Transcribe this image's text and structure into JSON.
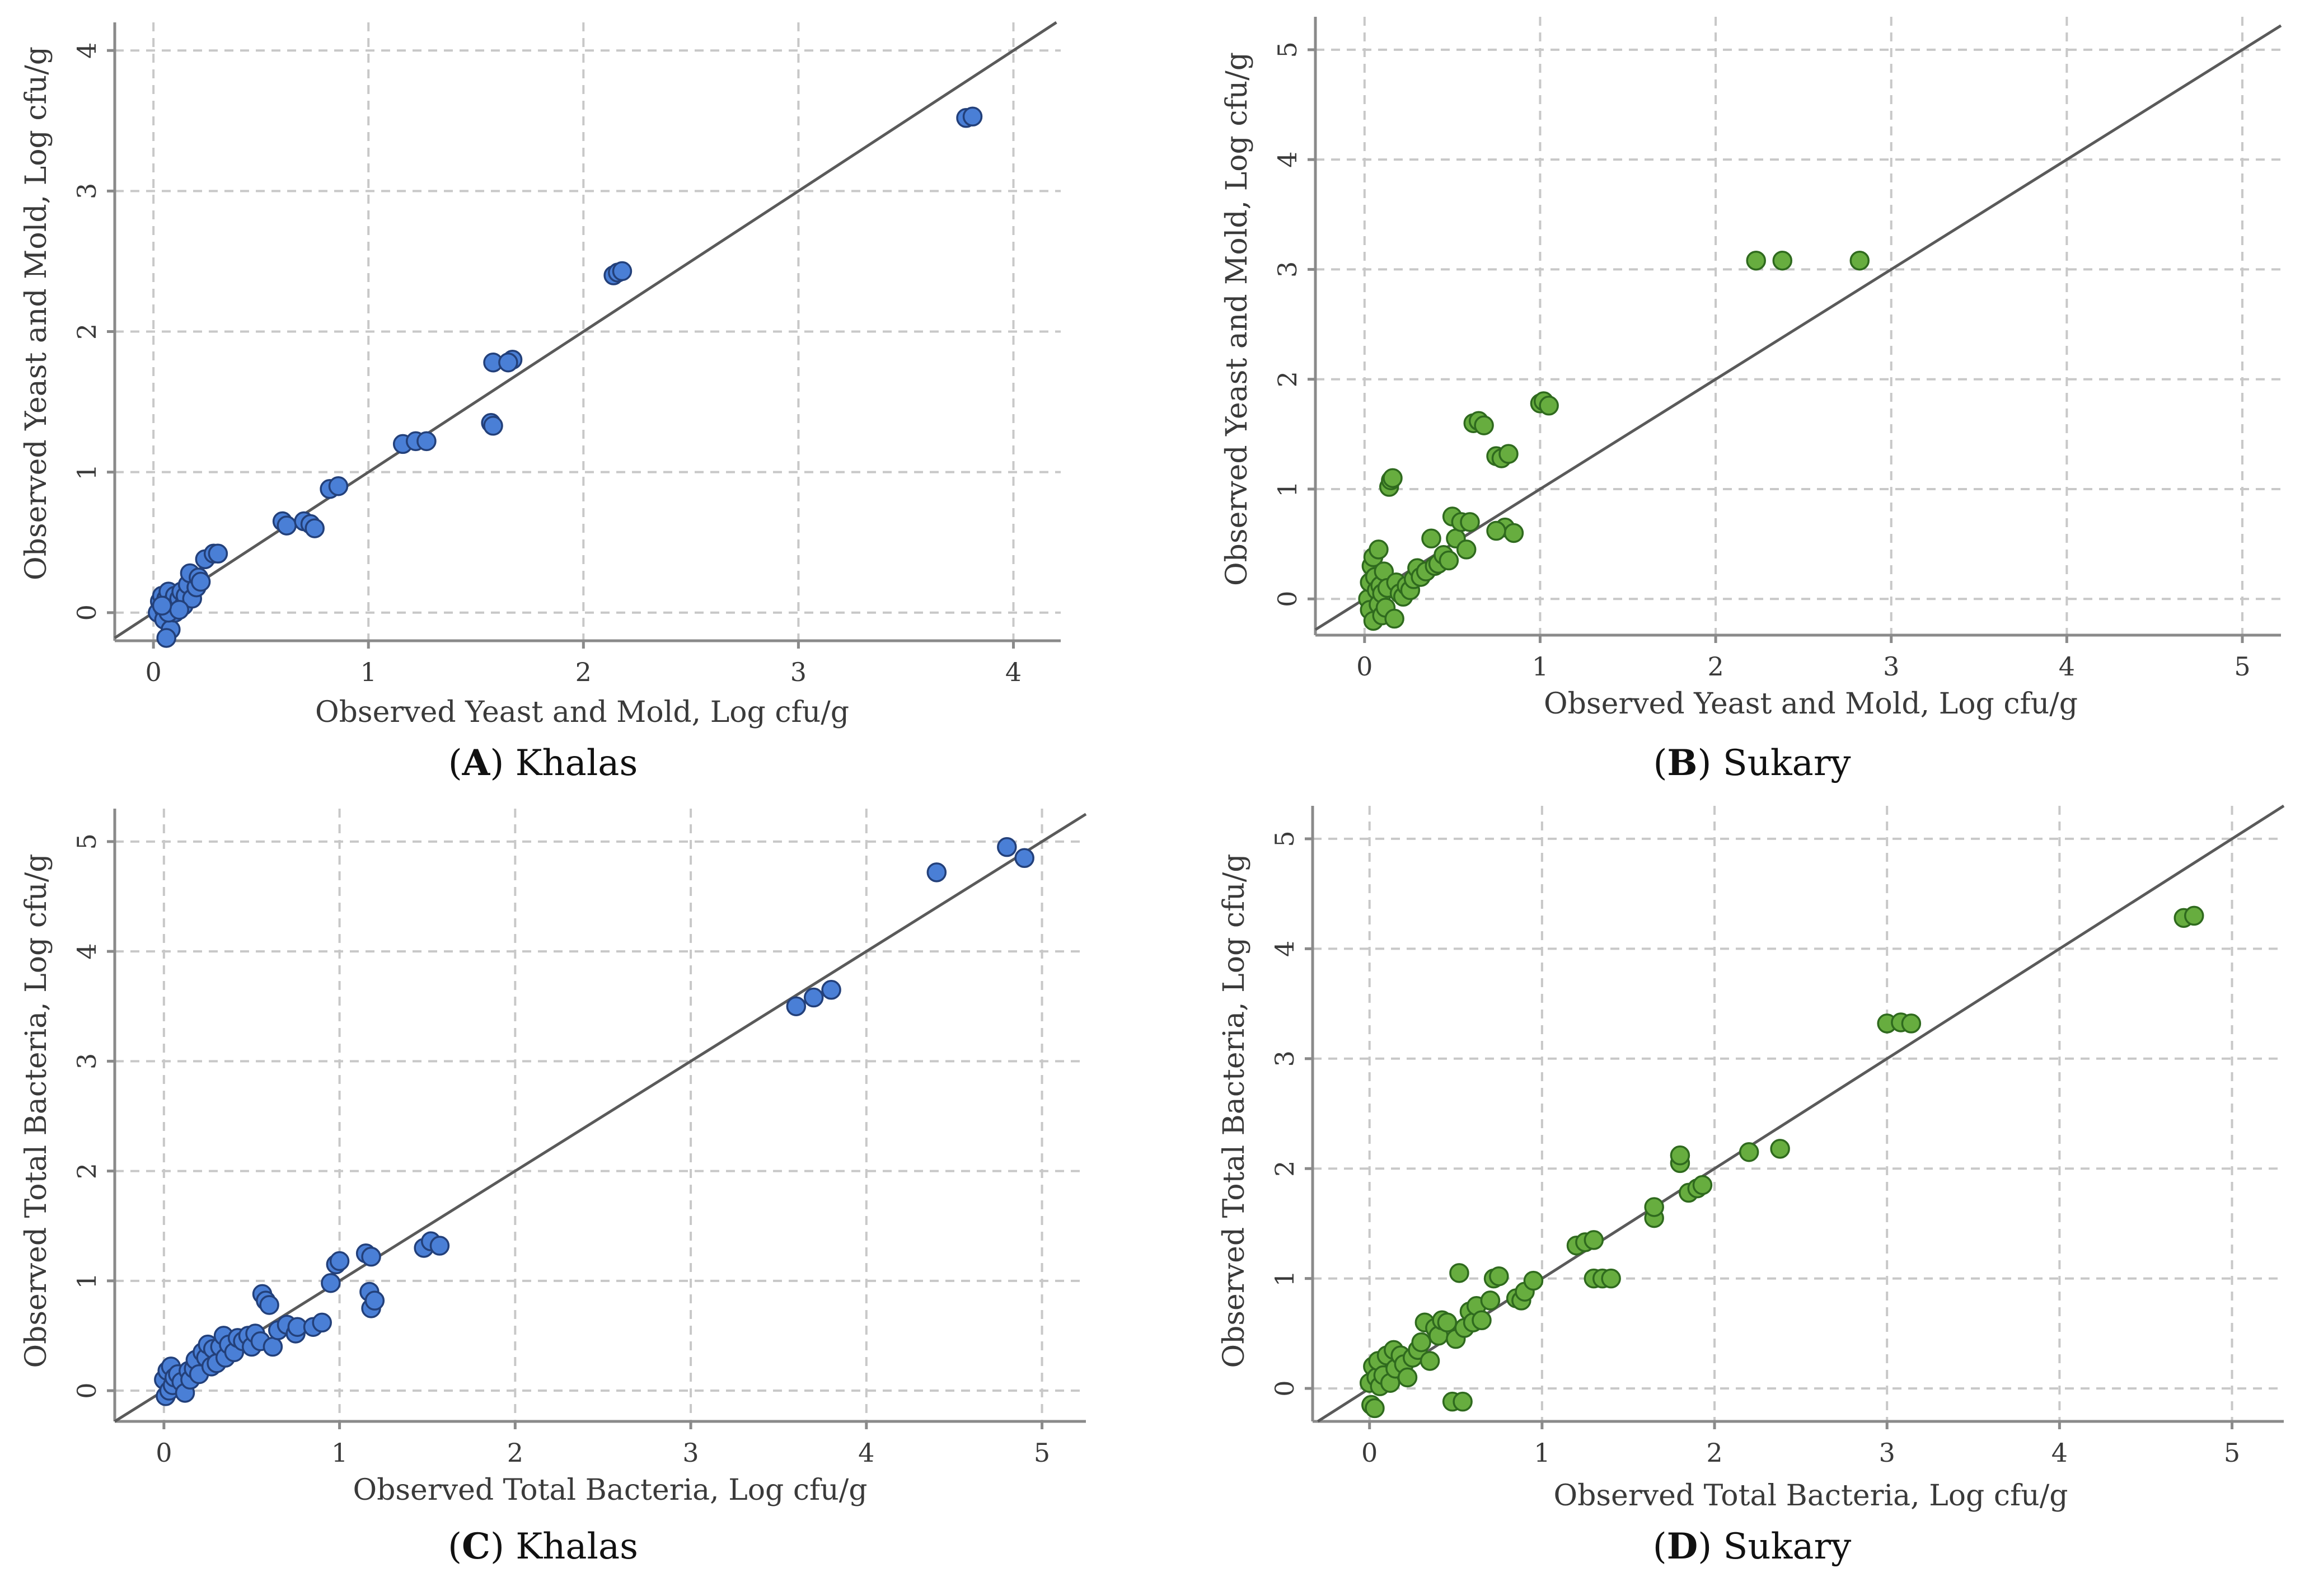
{
  "chart_data": [
    {
      "type": "scatter",
      "panel": "A",
      "caption_letter": "A",
      "caption_text": "Khalas",
      "color": "#4a7fd6",
      "stroke": "#23407a",
      "xlabel": "Observed Yeast and Mold, Log cfu/g",
      "ylabel": "Observed Yeast and Mold, Log cfu/g",
      "xlim": [
        -0.18,
        4.22
      ],
      "ylim": [
        -0.2,
        4.2
      ],
      "xticks": [
        "0",
        "1",
        "2",
        "3",
        "4"
      ],
      "yticks": [
        "0",
        "1",
        "2",
        "3",
        "4"
      ],
      "reference_line": "y = x",
      "points": [
        [
          0.02,
          0.0
        ],
        [
          0.03,
          0.08
        ],
        [
          0.04,
          0.12
        ],
        [
          0.05,
          0.02
        ],
        [
          0.05,
          -0.05
        ],
        [
          0.06,
          0.1
        ],
        [
          0.07,
          0.15
        ],
        [
          0.08,
          0.05
        ],
        [
          0.08,
          -0.12
        ],
        [
          0.09,
          0.08
        ],
        [
          0.1,
          0.12
        ],
        [
          0.1,
          0.0
        ],
        [
          0.11,
          0.05
        ],
        [
          0.12,
          0.1
        ],
        [
          0.13,
          0.15
        ],
        [
          0.14,
          0.05
        ],
        [
          0.15,
          0.12
        ],
        [
          0.16,
          0.2
        ],
        [
          0.17,
          0.28
        ],
        [
          0.18,
          0.1
        ],
        [
          0.2,
          0.18
        ],
        [
          0.21,
          0.25
        ],
        [
          0.22,
          0.22
        ],
        [
          0.24,
          0.38
        ],
        [
          0.28,
          0.42
        ],
        [
          0.3,
          0.42
        ],
        [
          0.06,
          -0.18
        ],
        [
          0.07,
          0.0
        ],
        [
          0.12,
          0.02
        ],
        [
          0.04,
          0.05
        ],
        [
          0.6,
          0.65
        ],
        [
          0.62,
          0.62
        ],
        [
          0.7,
          0.65
        ],
        [
          0.73,
          0.63
        ],
        [
          0.75,
          0.6
        ],
        [
          0.82,
          0.88
        ],
        [
          0.86,
          0.9
        ],
        [
          1.16,
          1.2
        ],
        [
          1.22,
          1.22
        ],
        [
          1.27,
          1.22
        ],
        [
          1.57,
          1.35
        ],
        [
          1.58,
          1.33
        ],
        [
          1.58,
          1.78
        ],
        [
          1.67,
          1.8
        ],
        [
          1.65,
          1.78
        ],
        [
          2.14,
          2.4
        ],
        [
          2.16,
          2.42
        ],
        [
          2.18,
          2.43
        ],
        [
          3.78,
          3.52
        ],
        [
          3.81,
          3.53
        ]
      ]
    },
    {
      "type": "scatter",
      "panel": "B",
      "caption_letter": "B",
      "caption_text": "Sukary",
      "color": "#67ad3f",
      "stroke": "#2f6a1e",
      "xlabel": "Observed Yeast and Mold, Log cfu/g",
      "ylabel": "Observed Yeast and Mold, Log cfu/g",
      "xlim": [
        -0.28,
        5.22
      ],
      "ylim": [
        -0.33,
        5.3
      ],
      "xticks": [
        "0",
        "1",
        "2",
        "3",
        "4",
        "5"
      ],
      "yticks": [
        "0",
        "1",
        "2",
        "3",
        "4",
        "5"
      ],
      "reference_line": "y = x",
      "points": [
        [
          0.02,
          0.0
        ],
        [
          0.03,
          0.15
        ],
        [
          0.03,
          -0.1
        ],
        [
          0.04,
          0.3
        ],
        [
          0.05,
          0.38
        ],
        [
          0.05,
          -0.2
        ],
        [
          0.06,
          0.2
        ],
        [
          0.07,
          0.08
        ],
        [
          0.08,
          -0.05
        ],
        [
          0.08,
          0.45
        ],
        [
          0.09,
          0.12
        ],
        [
          0.1,
          -0.15
        ],
        [
          0.1,
          0.05
        ],
        [
          0.11,
          0.25
        ],
        [
          0.12,
          -0.08
        ],
        [
          0.13,
          0.1
        ],
        [
          0.14,
          1.02
        ],
        [
          0.15,
          1.08
        ],
        [
          0.16,
          1.1
        ],
        [
          0.17,
          -0.18
        ],
        [
          0.18,
          0.15
        ],
        [
          0.2,
          0.05
        ],
        [
          0.22,
          0.02
        ],
        [
          0.24,
          0.12
        ],
        [
          0.26,
          0.08
        ],
        [
          0.28,
          0.18
        ],
        [
          0.3,
          0.28
        ],
        [
          0.32,
          0.2
        ],
        [
          0.35,
          0.25
        ],
        [
          0.38,
          0.55
        ],
        [
          0.4,
          0.3
        ],
        [
          0.42,
          0.32
        ],
        [
          0.45,
          0.4
        ],
        [
          0.48,
          0.35
        ],
        [
          0.5,
          0.75
        ],
        [
          0.52,
          0.55
        ],
        [
          0.55,
          0.7
        ],
        [
          0.58,
          0.45
        ],
        [
          0.6,
          0.7
        ],
        [
          0.62,
          1.6
        ],
        [
          0.65,
          1.62
        ],
        [
          0.68,
          1.58
        ],
        [
          0.75,
          1.3
        ],
        [
          0.78,
          1.28
        ],
        [
          0.82,
          1.32
        ],
        [
          0.8,
          0.65
        ],
        [
          0.85,
          0.6
        ],
        [
          0.75,
          0.62
        ],
        [
          1.0,
          1.78
        ],
        [
          1.02,
          1.8
        ],
        [
          1.05,
          1.76
        ],
        [
          2.23,
          3.08
        ],
        [
          2.38,
          3.08
        ],
        [
          2.82,
          3.08
        ]
      ]
    },
    {
      "type": "scatter",
      "panel": "C",
      "caption_letter": "C",
      "caption_text": "Khalas",
      "color": "#4a7fd6",
      "stroke": "#23407a",
      "xlabel": "Observed Total Bacteria, Log cfu/g",
      "ylabel": "Observed Total Bacteria,  Log cfu/g",
      "xlim": [
        -0.28,
        5.25
      ],
      "ylim": [
        -0.28,
        5.3
      ],
      "xticks": [
        "0",
        "1",
        "2",
        "3",
        "4",
        "5"
      ],
      "yticks": [
        "0",
        "1",
        "2",
        "3",
        "4",
        "5"
      ],
      "reference_line": "y = x",
      "points": [
        [
          0.0,
          0.1
        ],
        [
          0.01,
          -0.05
        ],
        [
          0.02,
          0.18
        ],
        [
          0.03,
          0.0
        ],
        [
          0.04,
          0.22
        ],
        [
          0.05,
          0.05
        ],
        [
          0.06,
          0.12
        ],
        [
          0.08,
          0.15
        ],
        [
          0.1,
          0.08
        ],
        [
          0.12,
          -0.02
        ],
        [
          0.14,
          0.18
        ],
        [
          0.15,
          0.1
        ],
        [
          0.17,
          0.2
        ],
        [
          0.18,
          0.28
        ],
        [
          0.2,
          0.15
        ],
        [
          0.22,
          0.35
        ],
        [
          0.24,
          0.3
        ],
        [
          0.25,
          0.42
        ],
        [
          0.27,
          0.22
        ],
        [
          0.28,
          0.38
        ],
        [
          0.3,
          0.25
        ],
        [
          0.32,
          0.4
        ],
        [
          0.34,
          0.5
        ],
        [
          0.35,
          0.3
        ],
        [
          0.37,
          0.42
        ],
        [
          0.4,
          0.35
        ],
        [
          0.42,
          0.48
        ],
        [
          0.45,
          0.45
        ],
        [
          0.48,
          0.5
        ],
        [
          0.5,
          0.4
        ],
        [
          0.52,
          0.52
        ],
        [
          0.55,
          0.45
        ],
        [
          0.56,
          0.88
        ],
        [
          0.58,
          0.82
        ],
        [
          0.6,
          0.78
        ],
        [
          0.62,
          0.4
        ],
        [
          0.65,
          0.55
        ],
        [
          0.7,
          0.6
        ],
        [
          0.75,
          0.52
        ],
        [
          0.76,
          0.58
        ],
        [
          0.85,
          0.58
        ],
        [
          0.9,
          0.62
        ],
        [
          0.95,
          0.98
        ],
        [
          0.98,
          1.15
        ],
        [
          1.0,
          1.18
        ],
        [
          1.15,
          1.25
        ],
        [
          1.18,
          1.22
        ],
        [
          1.17,
          0.9
        ],
        [
          1.18,
          0.75
        ],
        [
          1.2,
          0.82
        ],
        [
          1.48,
          1.3
        ],
        [
          1.52,
          1.36
        ],
        [
          1.57,
          1.32
        ],
        [
          3.6,
          3.5
        ],
        [
          3.7,
          3.58
        ],
        [
          3.8,
          3.65
        ],
        [
          4.4,
          4.72
        ],
        [
          4.8,
          4.95
        ],
        [
          4.9,
          4.85
        ]
      ]
    },
    {
      "type": "scatter",
      "panel": "D",
      "caption_letter": "D",
      "caption_text": "Sukary",
      "color": "#67ad3f",
      "stroke": "#2f6a1e",
      "xlabel": "Observed Total Bacteria, Log cfu/g",
      "ylabel": "Observed Total Bacteria, Log cfu/g",
      "xlim": [
        -0.33,
        5.3
      ],
      "ylim": [
        -0.3,
        5.3
      ],
      "xticks": [
        "0",
        "1",
        "2",
        "3",
        "4",
        "5"
      ],
      "yticks": [
        "0",
        "1",
        "2",
        "3",
        "4",
        "5"
      ],
      "reference_line": "y = x",
      "points": [
        [
          0.0,
          0.05
        ],
        [
          0.01,
          -0.15
        ],
        [
          0.02,
          0.2
        ],
        [
          0.03,
          -0.18
        ],
        [
          0.04,
          0.1
        ],
        [
          0.05,
          0.25
        ],
        [
          0.06,
          0.02
        ],
        [
          0.08,
          0.12
        ],
        [
          0.1,
          0.3
        ],
        [
          0.12,
          0.05
        ],
        [
          0.14,
          0.35
        ],
        [
          0.15,
          0.18
        ],
        [
          0.18,
          0.3
        ],
        [
          0.2,
          0.22
        ],
        [
          0.22,
          0.1
        ],
        [
          0.25,
          0.28
        ],
        [
          0.28,
          0.35
        ],
        [
          0.3,
          0.42
        ],
        [
          0.32,
          0.6
        ],
        [
          0.35,
          0.25
        ],
        [
          0.38,
          0.55
        ],
        [
          0.4,
          0.48
        ],
        [
          0.42,
          0.62
        ],
        [
          0.45,
          0.6
        ],
        [
          0.48,
          -0.12
        ],
        [
          0.5,
          0.45
        ],
        [
          0.52,
          1.05
        ],
        [
          0.54,
          -0.12
        ],
        [
          0.55,
          0.55
        ],
        [
          0.58,
          0.7
        ],
        [
          0.6,
          0.6
        ],
        [
          0.62,
          0.75
        ],
        [
          0.65,
          0.62
        ],
        [
          0.7,
          0.8
        ],
        [
          0.72,
          1.0
        ],
        [
          0.75,
          1.02
        ],
        [
          0.85,
          0.82
        ],
        [
          0.88,
          0.8
        ],
        [
          0.9,
          0.88
        ],
        [
          0.95,
          0.98
        ],
        [
          1.2,
          1.3
        ],
        [
          1.25,
          1.33
        ],
        [
          1.3,
          1.35
        ],
        [
          1.3,
          1.0
        ],
        [
          1.35,
          1.0
        ],
        [
          1.4,
          1.0
        ],
        [
          1.65,
          1.55
        ],
        [
          1.65,
          1.65
        ],
        [
          1.8,
          2.05
        ],
        [
          1.8,
          2.12
        ],
        [
          1.85,
          1.78
        ],
        [
          1.9,
          1.82
        ],
        [
          1.93,
          1.85
        ],
        [
          2.2,
          2.15
        ],
        [
          2.38,
          2.18
        ],
        [
          3.0,
          3.32
        ],
        [
          3.08,
          3.33
        ],
        [
          3.14,
          3.32
        ],
        [
          4.72,
          4.28
        ],
        [
          4.78,
          4.3
        ]
      ]
    }
  ]
}
